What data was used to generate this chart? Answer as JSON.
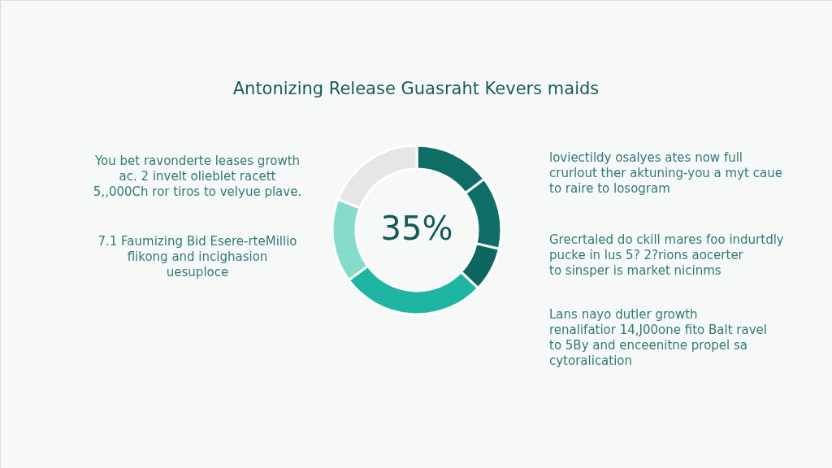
{
  "chart_data": {
    "type": "donut",
    "title": "Antonizing Release Guasraht Kevers maids",
    "categories": [
      null,
      null,
      null,
      null,
      null,
      null
    ],
    "values": [
      14.7,
      13.9,
      8.5,
      27.8,
      16.0,
      19.1
    ],
    "colors": [
      "#0e6e66",
      "#0f6f68",
      "#0d6660",
      "#1fb5a3",
      "#86dccb",
      "#e6e6e6"
    ],
    "legend": false,
    "annotations": [
      "35%",
      "You bet ravonderte leases growth\nac. 2 invelt olieblet racett\n5,,000Ch ror tiros to velyue plave.",
      "7.1 Faumizing Bid Esere-rteMillio\nflikong and incighasion\nuesuploce",
      "loviectildy osalyes ates now full\ncrurlout ther aktuning-you a myt caue\nto raire to losogram",
      "Grecrtaled do ckill mares foo indurtdly\npucke in lus 5? 2?rions aocerter\nto sinsper is market nicinms",
      "Lans nayo dutler growth\nrenalifatior 14,J00one fito Balt ravel\nto 5By and enceenitne propel sa\ncytoralication"
    ]
  }
}
